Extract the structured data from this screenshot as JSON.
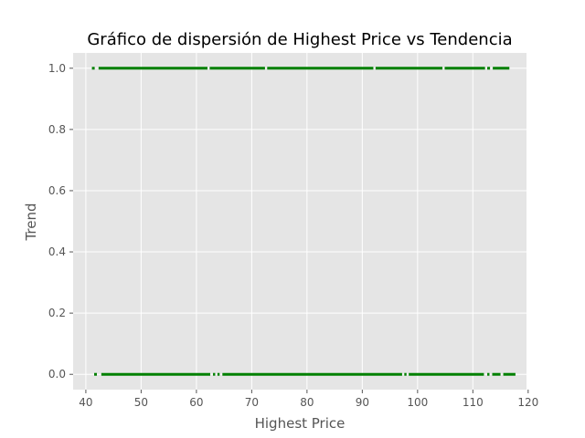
{
  "chart_data": {
    "type": "scatter",
    "title": "Gráfico de dispersión de Highest Price vs Tendencia",
    "xlabel": "Highest Price",
    "ylabel": "Trend",
    "xlim": [
      37.7,
      119.7
    ],
    "ylim": [
      -0.05,
      1.05
    ],
    "xticks": [
      40,
      50,
      60,
      70,
      80,
      90,
      100,
      110,
      120
    ],
    "yticks": [
      0.0,
      0.2,
      0.4,
      0.6,
      0.8,
      1.0
    ],
    "xtick_labels": [
      "40",
      "50",
      "60",
      "70",
      "80",
      "90",
      "100",
      "110",
      "120"
    ],
    "ytick_labels": [
      "0.0",
      "0.2",
      "0.4",
      "0.6",
      "0.8",
      "1.0"
    ],
    "grid": true,
    "point_color": "#008000",
    "background_color": "#e5e5e5",
    "series": [
      {
        "y": 1,
        "segments": [
          [
            41.1,
            41.6
          ],
          [
            42.3,
            62.0
          ],
          [
            62.4,
            72.4
          ],
          [
            72.8,
            92.0
          ],
          [
            92.4,
            104.5
          ],
          [
            104.9,
            112.2
          ],
          [
            112.6,
            113.1
          ],
          [
            113.6,
            116.6
          ]
        ]
      },
      {
        "y": 0,
        "segments": [
          [
            41.5,
            42.0
          ],
          [
            42.8,
            62.5
          ],
          [
            63.0,
            63.4
          ],
          [
            63.8,
            64.2
          ],
          [
            64.7,
            97.2
          ],
          [
            97.6,
            98.0
          ],
          [
            98.4,
            112.0
          ],
          [
            112.6,
            113.0
          ],
          [
            113.5,
            115.0
          ],
          [
            115.5,
            117.7
          ]
        ]
      }
    ]
  }
}
